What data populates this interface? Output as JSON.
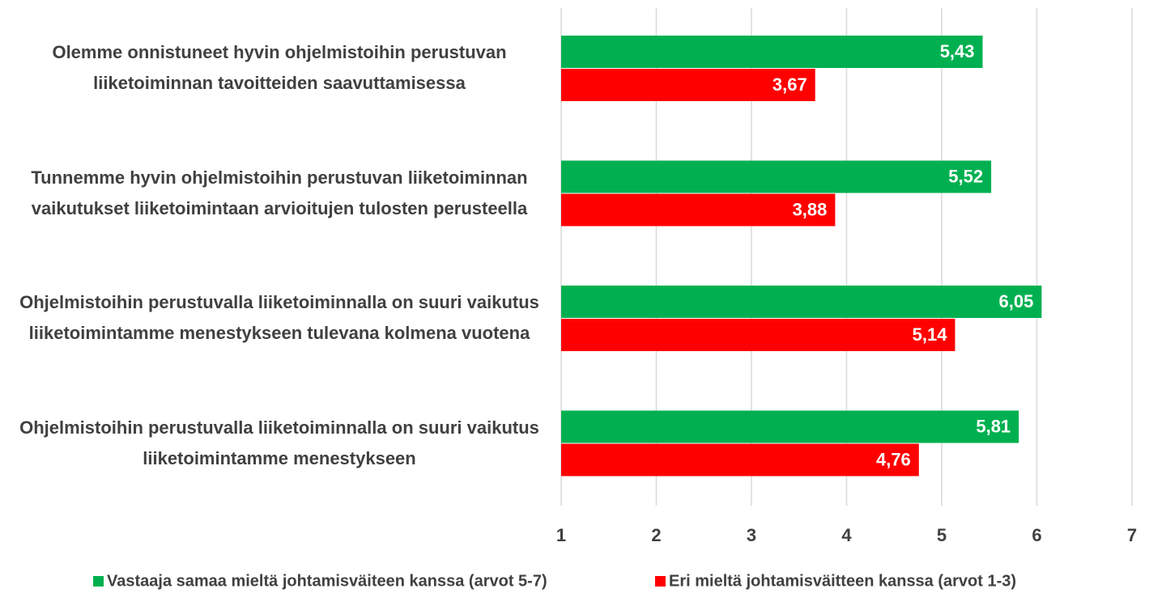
{
  "chart_data": {
    "type": "barh",
    "categories": [
      "Olemme onnistuneet hyvin ohjelmistoihin perustuvan liiketoiminnan tavoitteiden saavuttamisessa",
      "Tunnemme hyvin ohjelmistoihin perustuvan liiketoiminnan vaikutukset liiketoimintaan arvioitujen tulosten perusteella",
      "Ohjelmistoihin perustuvalla liiketoiminnalla on suuri vaikutus liiketoimintamme menestykseen tulevana kolmena vuotena",
      "Ohjelmistoihin perustuvalla liiketoiminnalla on suuri vaikutus liiketoimintamme menestykseen"
    ],
    "series": [
      {
        "name": "Vastaaja samaa mieltä johtamisväiteen kanssa (arvot 5-7)",
        "color": "#00b050",
        "values": [
          5.43,
          5.52,
          6.05,
          5.81
        ],
        "value_labels": [
          "5,43",
          "5,52",
          "6,05",
          "5,81"
        ]
      },
      {
        "name": "Eri mieltä johtamisväitteen kanssa (arvot 1-3)",
        "color": "#ff0000",
        "values": [
          3.67,
          3.88,
          5.14,
          4.76
        ],
        "value_labels": [
          "3,67",
          "3,88",
          "5,14",
          "4,76"
        ]
      }
    ],
    "xlim": [
      1,
      7
    ],
    "xticks": [
      1,
      2,
      3,
      4,
      5,
      6,
      7
    ],
    "grid": true,
    "legend": "bottom"
  }
}
